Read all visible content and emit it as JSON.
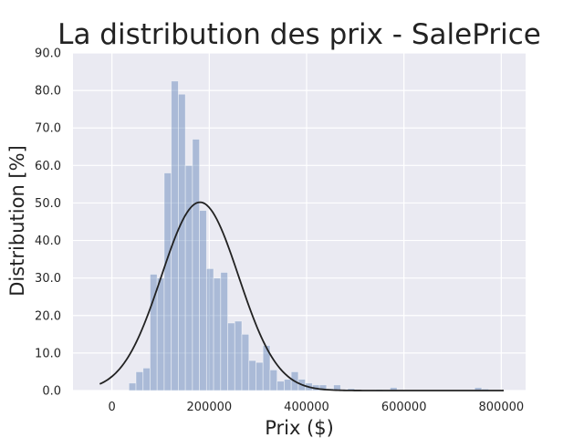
{
  "chart_data": {
    "type": "bar",
    "title": "La distribution des prix - SalePrice",
    "xlabel": "Prix ($)",
    "ylabel": "Distribution [%]",
    "xlim": [
      -80000,
      850000
    ],
    "ylim": [
      0,
      90
    ],
    "x_ticks": [
      0,
      200000,
      400000,
      600000,
      800000
    ],
    "x_tick_labels": [
      "0",
      "200000",
      "400000",
      "600000",
      "800000"
    ],
    "y_ticks": [
      0,
      10,
      20,
      30,
      40,
      50,
      60,
      70,
      80,
      90
    ],
    "y_tick_labels": [
      "0.0",
      "10.0",
      "20.0",
      "30.0",
      "40.0",
      "50.0",
      "60.0",
      "70.0",
      "80.0",
      "90.0"
    ],
    "grid": true,
    "bin_width": 14500,
    "bins": [
      {
        "x0": 34900,
        "value": 2
      },
      {
        "x0": 49400,
        "value": 5
      },
      {
        "x0": 63900,
        "value": 6
      },
      {
        "x0": 78400,
        "value": 31
      },
      {
        "x0": 92900,
        "value": 30
      },
      {
        "x0": 107400,
        "value": 58
      },
      {
        "x0": 121900,
        "value": 82.5
      },
      {
        "x0": 136400,
        "value": 79
      },
      {
        "x0": 150900,
        "value": 60
      },
      {
        "x0": 165400,
        "value": 67
      },
      {
        "x0": 179900,
        "value": 48
      },
      {
        "x0": 194400,
        "value": 32.5
      },
      {
        "x0": 208900,
        "value": 30
      },
      {
        "x0": 223400,
        "value": 31.5
      },
      {
        "x0": 237900,
        "value": 18
      },
      {
        "x0": 252400,
        "value": 18.5
      },
      {
        "x0": 266900,
        "value": 15
      },
      {
        "x0": 281400,
        "value": 8
      },
      {
        "x0": 295900,
        "value": 7.5
      },
      {
        "x0": 310400,
        "value": 12
      },
      {
        "x0": 324900,
        "value": 5.5
      },
      {
        "x0": 339400,
        "value": 2.5
      },
      {
        "x0": 353900,
        "value": 3
      },
      {
        "x0": 368400,
        "value": 5
      },
      {
        "x0": 382900,
        "value": 3
      },
      {
        "x0": 397400,
        "value": 2
      },
      {
        "x0": 411900,
        "value": 1.5
      },
      {
        "x0": 426400,
        "value": 1.5
      },
      {
        "x0": 440900,
        "value": 0.5
      },
      {
        "x0": 455400,
        "value": 1.5
      },
      {
        "x0": 484400,
        "value": 0.5
      },
      {
        "x0": 542400,
        "value": 0.3
      },
      {
        "x0": 571400,
        "value": 0.8
      },
      {
        "x0": 745400,
        "value": 0.8
      },
      {
        "x0": 759900,
        "value": 0.4
      }
    ],
    "fit_curve": {
      "type": "normal",
      "mean": 180921,
      "std": 79415,
      "peak": 50.2,
      "x_range": [
        -25000,
        805000
      ]
    },
    "colors": {
      "bars": "#4c72b0",
      "bars_opacity": 0.4,
      "curve": "#222222",
      "plot_background": "#eaeaf2",
      "grid": "#ffffff"
    }
  }
}
